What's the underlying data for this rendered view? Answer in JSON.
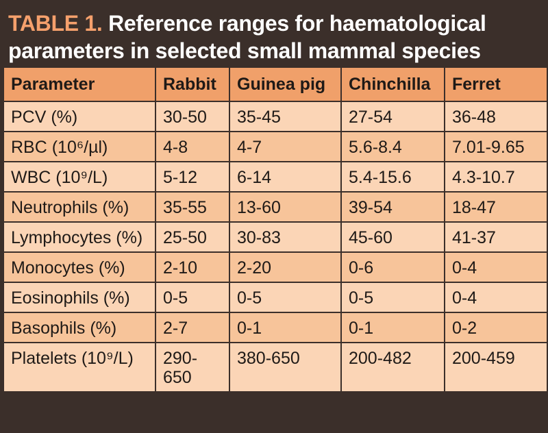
{
  "title": {
    "label": "TABLE 1.",
    "text": "Reference ranges for haematological parameters in selected small mammal species"
  },
  "table": {
    "headers": [
      "Parameter",
      "Rabbit",
      "Guinea pig",
      "Chinchilla",
      "Ferret"
    ],
    "rows": [
      [
        "PCV (%)",
        "30-50",
        "35-45",
        "27-54",
        "36-48"
      ],
      [
        "RBC (10⁶/µl)",
        "4-8",
        "4-7",
        "5.6-8.4",
        "7.01-9.65"
      ],
      [
        "WBC (10⁹/L)",
        "5-12",
        "6-14",
        "5.4-15.6",
        "4.3-10.7"
      ],
      [
        "Neutrophils (%)",
        "35-55",
        "13-60",
        "39-54",
        "18-47"
      ],
      [
        "Lymphocytes (%)",
        "25-50",
        "30-83",
        "45-60",
        "41-37"
      ],
      [
        "Monocytes (%)",
        "2-10",
        "2-20",
        "0-6",
        "0-4"
      ],
      [
        "Eosinophils (%)",
        "0-5",
        "0-5",
        "0-5",
        "0-4"
      ],
      [
        "Basophils (%)",
        "2-7",
        "0-1",
        "0-1",
        "0-2"
      ],
      [
        "Platelets (10⁹/L)",
        "290-650",
        "380-650",
        "200-482",
        "200-459"
      ]
    ]
  }
}
